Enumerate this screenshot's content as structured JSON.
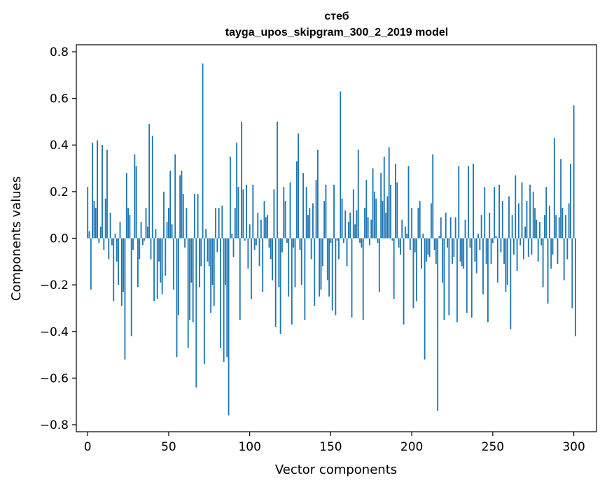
{
  "chart_data": {
    "type": "bar",
    "title_line1": "стеб",
    "title_line2": "tayga_upos_skipgram_300_2_2019 model",
    "xlabel": "Vector components",
    "ylabel": "Components values",
    "xlim": [
      -7,
      314
    ],
    "ylim": [
      -0.83,
      0.83
    ],
    "xticks": [
      0,
      50,
      100,
      150,
      200,
      250,
      300
    ],
    "xtick_labels": [
      "0",
      "50",
      "100",
      "150",
      "200",
      "250",
      "300"
    ],
    "yticks": [
      -0.8,
      -0.6,
      -0.4,
      -0.2,
      0.0,
      0.2,
      0.4,
      0.6,
      0.8
    ],
    "ytick_labels": [
      "−0.8",
      "−0.6",
      "−0.4",
      "−0.2",
      "0.0",
      "0.2",
      "0.4",
      "0.6",
      "0.8"
    ],
    "bar_color": "#1f77b4",
    "values": [
      0.22,
      0.03,
      -0.22,
      0.41,
      0.16,
      0.13,
      0.42,
      -0.02,
      0.05,
      0.4,
      -0.05,
      0.17,
      0.38,
      -0.09,
      0.11,
      -0.03,
      -0.27,
      0.02,
      -0.1,
      -0.2,
      0.07,
      -0.29,
      -0.23,
      -0.52,
      0.28,
      0.13,
      0.1,
      -0.42,
      -0.05,
      0.36,
      0.31,
      -0.21,
      -0.09,
      0.07,
      -0.03,
      -0.01,
      0.13,
      0.05,
      0.49,
      -0.09,
      0.44,
      -0.27,
      0.04,
      -0.26,
      -0.1,
      -0.19,
      -0.24,
      0.2,
      -0.16,
      0.07,
      0.13,
      0.29,
      0.06,
      -0.22,
      0.36,
      -0.51,
      -0.33,
      0.27,
      0.29,
      0.19,
      -0.04,
      0.13,
      -0.47,
      -0.35,
      -0.19,
      -0.36,
      0.19,
      -0.64,
      0.19,
      -0.21,
      -0.12,
      0.75,
      -0.54,
      0.04,
      -0.1,
      -0.12,
      -0.32,
      -0.2,
      -0.29,
      0.13,
      -0.06,
      0.13,
      -0.47,
      0.14,
      -0.53,
      -0.2,
      -0.51,
      -0.76,
      0.35,
      0.02,
      -0.08,
      0.13,
      0.41,
      0.22,
      -0.35,
      0.5,
      0.21,
      -0.01,
      0.23,
      -0.13,
      0.06,
      -0.26,
      0.23,
      -0.05,
      -0.03,
      0.11,
      -0.12,
      0.08,
      -0.23,
      0.16,
      0.09,
      0.1,
      -0.04,
      -0.09,
      -0.18,
      0.21,
      -0.38,
      0.5,
      -0.21,
      -0.41,
      -0.06,
      0.22,
      0.16,
      -0.02,
      -0.25,
      0.24,
      -0.37,
      -0.04,
      -0.21,
      0.33,
      0.45,
      -0.05,
      -0.2,
      0.28,
      -0.35,
      0.22,
      0.1,
      0.13,
      -0.09,
      0.15,
      -0.29,
      0.25,
      0.38,
      -0.25,
      -0.22,
      -0.12,
      0.16,
      0.23,
      -0.18,
      -0.25,
      -0.02,
      -0.31,
      0.23,
      -0.33,
      -0.01,
      -0.09,
      0.63,
      0.17,
      -0.02,
      0.12,
      -0.12,
      0.07,
      0.11,
      -0.34,
      0.21,
      0.06,
      0.12,
      0.38,
      -0.02,
      -0.04,
      -0.35,
      0.13,
      0.25,
      0.09,
      -0.03,
      0.08,
      0.3,
      0.2,
      0.17,
      -0.02,
      -0.23,
      0.28,
      0.16,
      0.35,
      0.11,
      0.18,
      0.39,
      0.23,
      -0.01,
      -0.26,
      0.32,
      0.24,
      -0.04,
      -0.07,
      0.08,
      -0.37,
      0.05,
      0.02,
      0.31,
      -0.05,
      0.13,
      -0.3,
      -0.06,
      -0.27,
      0.13,
      0.16,
      -0.13,
      0.02,
      -0.52,
      -0.1,
      -0.07,
      -0.08,
      0.15,
      0.36,
      -0.05,
      -0.11,
      -0.74,
      0.01,
      0.09,
      -0.19,
      -0.35,
      0.11,
      -0.04,
      -0.33,
      0.09,
      -0.11,
      -0.08,
      0.09,
      -0.36,
      0.31,
      -0.1,
      -0.12,
      -0.13,
      0.08,
      -0.32,
      0.31,
      -0.04,
      -0.34,
      0.32,
      -0.1,
      -0.15,
      0.02,
      -0.05,
      0.1,
      -0.24,
      0.22,
      -0.11,
      -0.36,
      0.11,
      -0.11,
      -0.02,
      0.22,
      0.01,
      -0.19,
      0.23,
      -0.06,
      0.16,
      -0.11,
      -0.23,
      -0.2,
      0.18,
      -0.39,
      0.1,
      -0.07,
      0.27,
      -0.14,
      0.15,
      -0.03,
      0.24,
      -0.09,
      0.05,
      0.16,
      -0.08,
      0.23,
      -0.07,
      0.2,
      0.13,
      0.08,
      -0.1,
      0.07,
      -0.03,
      -0.21,
      0.1,
      0.22,
      -0.28,
      0.14,
      -0.13,
      -0.07,
      0.43,
      0.1,
      -0.11,
      0.09,
      0.34,
      0.13,
      -0.18,
      0.1,
      -0.09,
      0.15,
      0.32,
      -0.3,
      0.57,
      -0.42
    ]
  }
}
